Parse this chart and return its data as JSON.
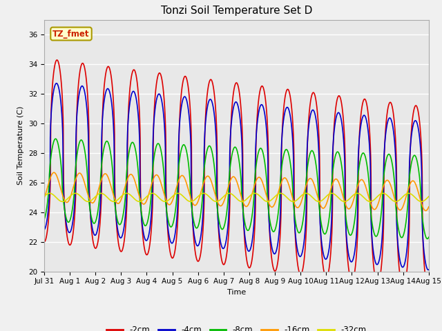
{
  "title": "Tonzi Soil Temperature Set D",
  "xlabel": "Time",
  "ylabel": "Soil Temperature (C)",
  "ylim": [
    20,
    37
  ],
  "yticks": [
    20,
    22,
    24,
    26,
    28,
    30,
    32,
    34,
    36
  ],
  "xlim_days": [
    0,
    15
  ],
  "xtick_labels": [
    "Jul 31",
    "Aug 1",
    "Aug 2",
    "Aug 3",
    "Aug 4",
    "Aug 5",
    "Aug 6",
    "Aug 7",
    "Aug 8",
    "Aug 9",
    "Aug 10",
    "Aug 11",
    "Aug 12",
    "Aug 13",
    "Aug 14",
    "Aug 15"
  ],
  "annotation_text": "TZ_fmet",
  "annotation_color": "#cc2200",
  "annotation_bg": "#ffffcc",
  "annotation_border": "#aa9900",
  "series": [
    {
      "label": "-2cm",
      "color": "#dd0000",
      "mean": 28.2,
      "amplitude": 6.2,
      "phase_shift": 0.0,
      "phase_sharpness": 2.5,
      "trend": -0.22
    },
    {
      "label": "-4cm",
      "color": "#0000cc",
      "mean": 27.8,
      "amplitude": 5.0,
      "phase_shift": 0.12,
      "phase_sharpness": 2.5,
      "trend": -0.18
    },
    {
      "label": "-8cm",
      "color": "#00bb00",
      "mean": 26.2,
      "amplitude": 2.8,
      "phase_shift": 0.35,
      "phase_sharpness": 1.5,
      "trend": -0.08
    },
    {
      "label": "-16cm",
      "color": "#ff9900",
      "mean": 25.7,
      "amplitude": 1.0,
      "phase_shift": 0.75,
      "phase_sharpness": 1.0,
      "trend": -0.04
    },
    {
      "label": "-32cm",
      "color": "#dddd00",
      "mean": 25.0,
      "amplitude": 0.28,
      "phase_shift": 1.8,
      "phase_sharpness": 1.0,
      "trend": 0.0
    }
  ],
  "bg_color": "#e8e8e8",
  "grid_color": "#ffffff",
  "fig_bg_color": "#f0f0f0",
  "title_fontsize": 11,
  "label_fontsize": 8,
  "tick_fontsize": 7.5,
  "linewidth": 1.2
}
